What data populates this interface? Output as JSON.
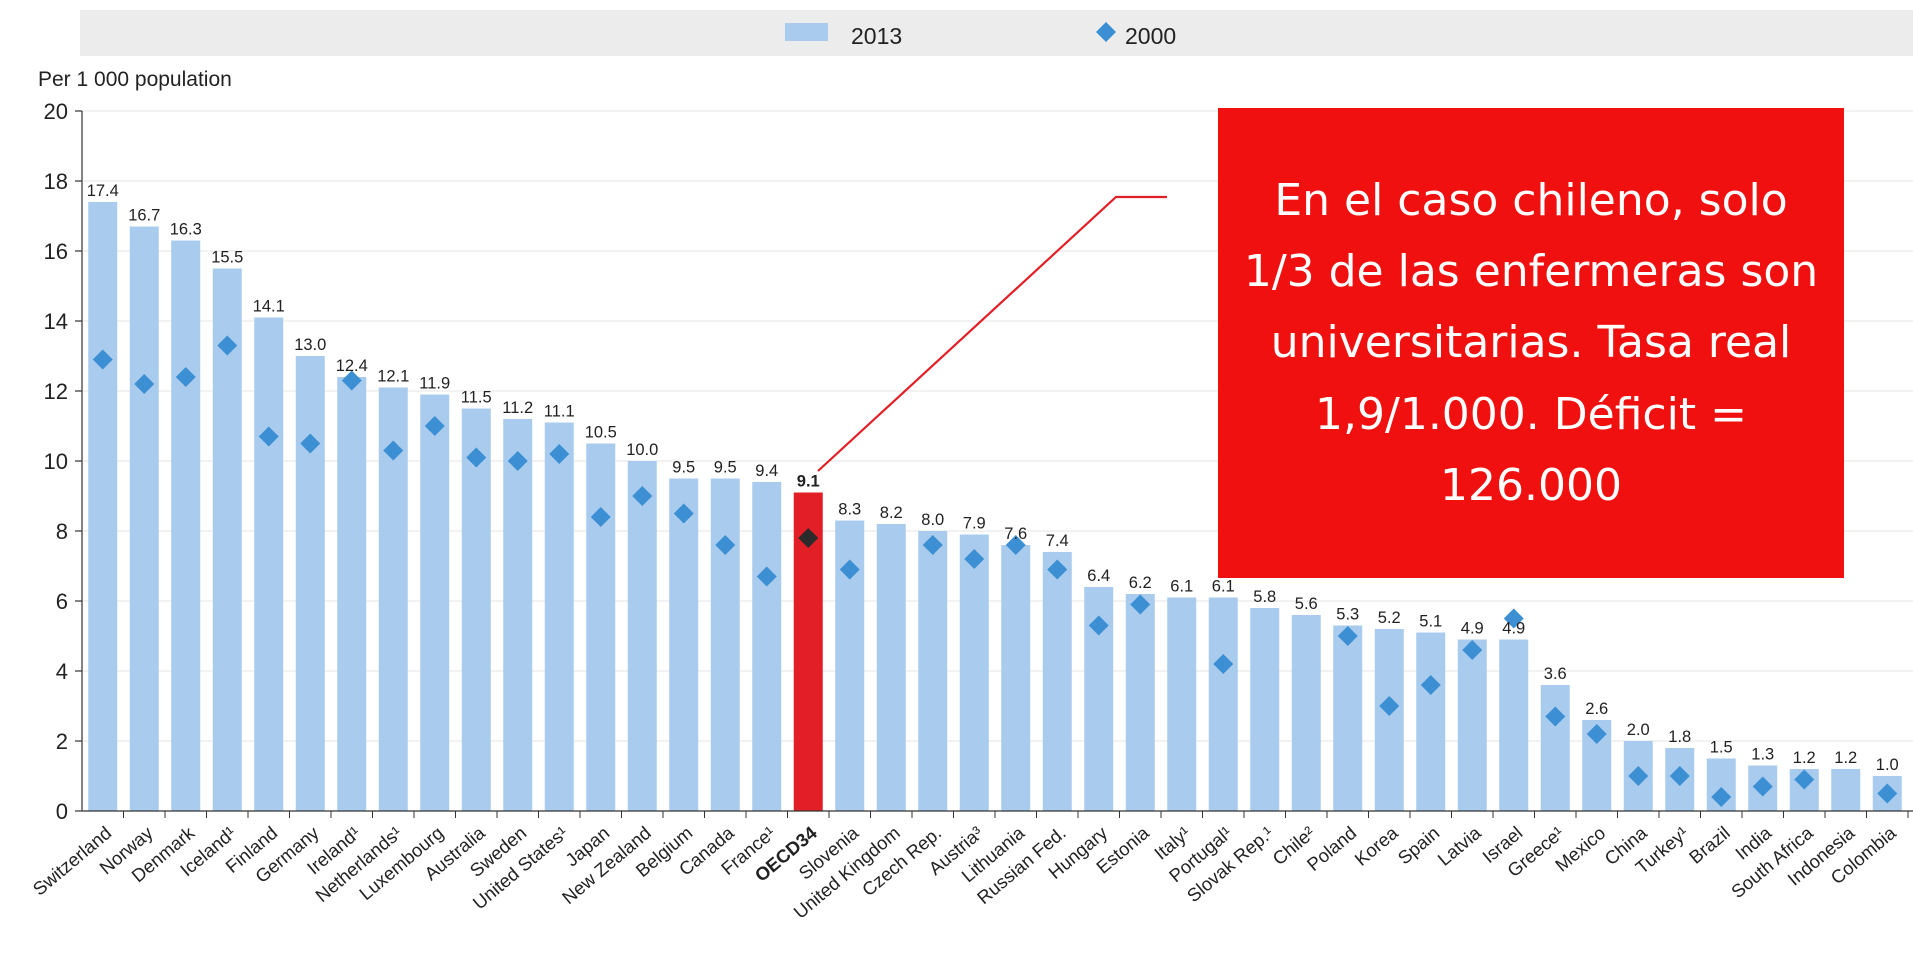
{
  "colors": {
    "bar": "#a9cbee",
    "highlight_bar": "#e21f26",
    "marker": "#3c8fd2",
    "highlight_marker": "#2b2b2b",
    "callout": "#f01010"
  },
  "legend": {
    "label_2013": "2013",
    "label_2000": "2000"
  },
  "unit_label": "Per 1 000 population",
  "callout": {
    "text": "En el caso chileno, solo 1/3 de las enfermeras son universitarias. Tasa real 1,9/1.000. Déficit = 126.000"
  },
  "chart_data": {
    "type": "bar",
    "ylabel": "Per 1 000 population",
    "ylim": [
      0,
      20
    ],
    "yticks": [
      0,
      2,
      4,
      6,
      8,
      10,
      12,
      14,
      16,
      18,
      20
    ],
    "legend_position": "top",
    "categories": [
      "Switzerland",
      "Norway",
      "Denmark",
      "Iceland¹",
      "Finland",
      "Germany",
      "Ireland¹",
      "Netherlands¹",
      "Luxembourg",
      "Australia",
      "Sweden",
      "United States¹",
      "Japan",
      "New Zealand",
      "Belgium",
      "Canada",
      "France¹",
      "OECD34",
      "Slovenia",
      "United Kingdom",
      "Czech Rep.",
      "Austria³",
      "Lithuania",
      "Russian Fed.",
      "Hungary",
      "Estonia",
      "Italy¹",
      "Portugal¹",
      "Slovak Rep.¹",
      "Chile²",
      "Poland",
      "Korea",
      "Spain",
      "Latvia",
      "Israel",
      "Greece¹",
      "Mexico",
      "China",
      "Turkey¹",
      "Brazil",
      "India",
      "South Africa",
      "Indonesia",
      "Colombia"
    ],
    "highlight_category": "OECD34",
    "series": [
      {
        "name": "2013",
        "kind": "bar",
        "values": [
          17.4,
          16.7,
          16.3,
          15.5,
          14.1,
          13.0,
          12.4,
          12.1,
          11.9,
          11.5,
          11.2,
          11.1,
          10.5,
          10.0,
          9.5,
          9.5,
          9.4,
          9.1,
          8.3,
          8.2,
          8.0,
          7.9,
          7.6,
          7.4,
          6.4,
          6.2,
          6.1,
          6.1,
          5.8,
          5.6,
          5.3,
          5.2,
          5.1,
          4.9,
          4.9,
          3.6,
          2.6,
          2.0,
          1.8,
          1.5,
          1.3,
          1.2,
          1.2,
          1.0
        ],
        "labels": [
          "17.4",
          "16.7",
          "16.3",
          "15.5",
          "14.1",
          "13.0",
          "12.4",
          "12.1",
          "11.9",
          "11.5",
          "11.2",
          "11.1",
          "10.5",
          "10.0",
          "9.5",
          "9.5",
          "9.4",
          "9.1",
          "8.3",
          "8.2",
          "8.0",
          "7.9",
          "7.6",
          "7.4",
          "6.4",
          "6.2",
          "6.1",
          "6.1",
          "5.8",
          "5.6",
          "5.3",
          "5.2",
          "5.1",
          "4.9",
          "4.9",
          "3.6",
          "2.6",
          "2.0",
          "1.8",
          "1.5",
          "1.3",
          "1.2",
          "1.2",
          "1.0"
        ]
      },
      {
        "name": "2000",
        "kind": "marker",
        "values": [
          12.9,
          12.2,
          12.4,
          13.3,
          10.7,
          10.5,
          12.3,
          10.3,
          11.0,
          10.1,
          10.0,
          10.2,
          8.4,
          9.0,
          8.5,
          7.6,
          6.7,
          7.8,
          6.9,
          null,
          7.6,
          7.2,
          7.6,
          6.9,
          5.3,
          5.9,
          null,
          4.2,
          null,
          null,
          5.0,
          3.0,
          3.6,
          4.6,
          5.5,
          2.7,
          2.2,
          1.0,
          1.0,
          0.4,
          0.7,
          0.9,
          null,
          0.5
        ]
      }
    ]
  }
}
